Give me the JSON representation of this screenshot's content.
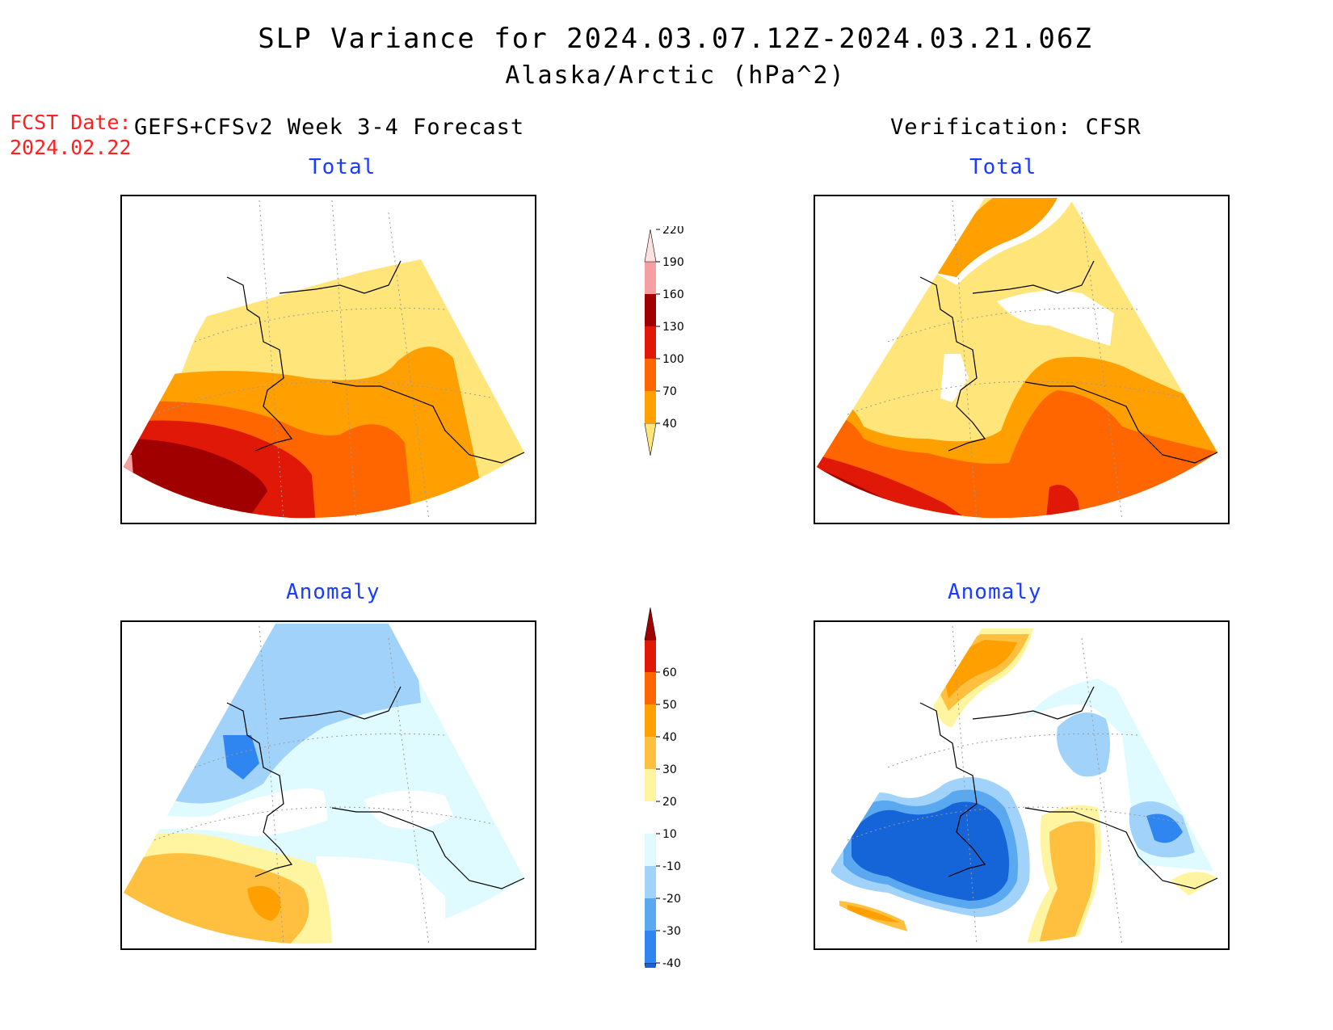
{
  "title": "SLP Variance for 2024.03.07.12Z-2024.03.21.06Z",
  "subtitle": "Alaska/Arctic (hPa^2)",
  "fcst": {
    "label": "FCST Date:",
    "date": "2024.02.22"
  },
  "left_header": "GEFS+CFSv2 Week 3-4 Forecast",
  "right_header": "Verification: CFSR",
  "panels": {
    "forecast_total": "Total",
    "verification_total": "Total",
    "forecast_anomaly": "Anomaly",
    "verification_anomaly": "Anomaly"
  },
  "colorbars": {
    "total": {
      "levels": [
        "40",
        "70",
        "100",
        "130",
        "160",
        "190",
        "220"
      ],
      "colors": [
        "#ffe57a",
        "#ffa000",
        "#ff6600",
        "#e01808",
        "#a00000",
        "#f5a0a0",
        "#fde0e0"
      ]
    },
    "anomaly": {
      "levels": [
        "-40",
        "-30",
        "-20",
        "-10",
        "10",
        "20",
        "30",
        "40",
        "50",
        "60"
      ],
      "colors": [
        "#1565d8",
        "#2f86f0",
        "#5aa8f0",
        "#a0d2fa",
        "#e0fbff",
        "#ffffff",
        "#fff4a0",
        "#ffc040",
        "#ffa000",
        "#ff6600",
        "#e01808",
        "#a00000"
      ]
    }
  }
}
